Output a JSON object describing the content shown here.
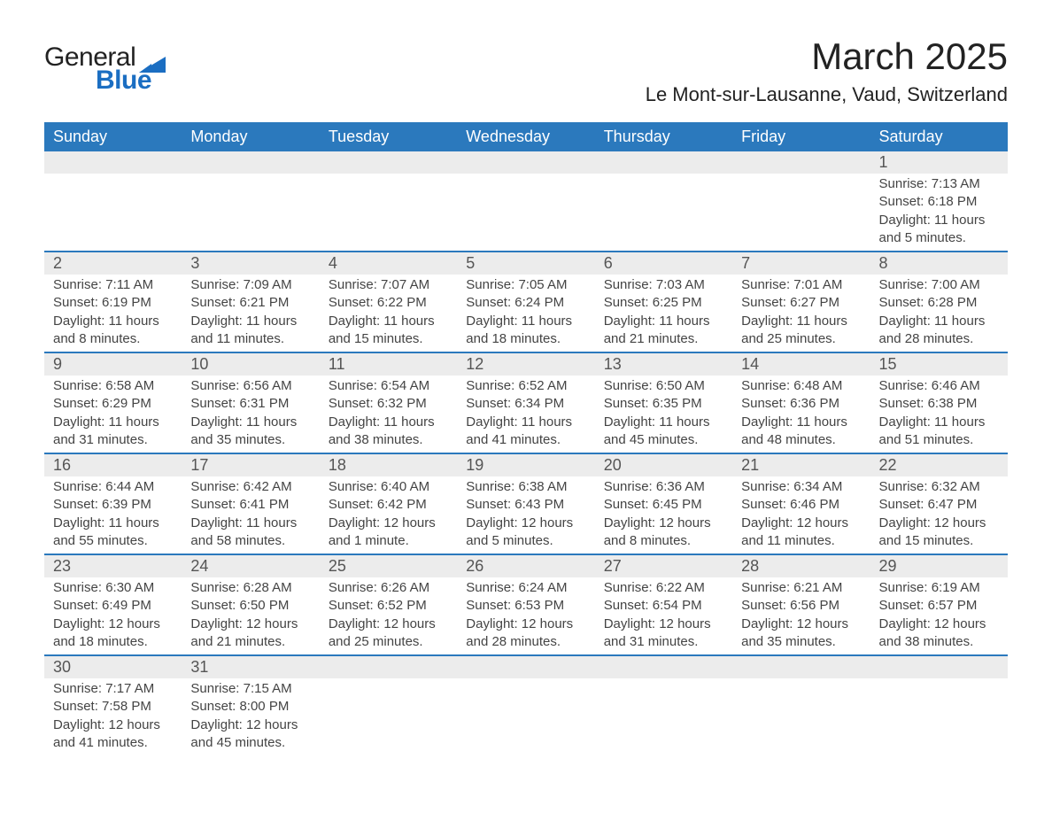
{
  "brand": {
    "text1": "General",
    "text2": "Blue"
  },
  "title": "March 2025",
  "location": "Le Mont-sur-Lausanne, Vaud, Switzerland",
  "colors": {
    "header_bg": "#2b79bd",
    "header_text": "#ffffff",
    "daynum_bg": "#ececec",
    "row_border": "#2b79bd",
    "body_text": "#444444",
    "brand_blue": "#1b6ec2"
  },
  "typography": {
    "title_fontsize": 42,
    "location_fontsize": 22,
    "header_fontsize": 18,
    "daynum_fontsize": 18,
    "detail_fontsize": 15
  },
  "weekdays": [
    "Sunday",
    "Monday",
    "Tuesday",
    "Wednesday",
    "Thursday",
    "Friday",
    "Saturday"
  ],
  "weeks": [
    {
      "nums": [
        "",
        "",
        "",
        "",
        "",
        "",
        "1"
      ],
      "details": [
        "",
        "",
        "",
        "",
        "",
        "",
        "Sunrise: 7:13 AM\nSunset: 6:18 PM\nDaylight: 11 hours and 5 minutes."
      ]
    },
    {
      "nums": [
        "2",
        "3",
        "4",
        "5",
        "6",
        "7",
        "8"
      ],
      "details": [
        "Sunrise: 7:11 AM\nSunset: 6:19 PM\nDaylight: 11 hours and 8 minutes.",
        "Sunrise: 7:09 AM\nSunset: 6:21 PM\nDaylight: 11 hours and 11 minutes.",
        "Sunrise: 7:07 AM\nSunset: 6:22 PM\nDaylight: 11 hours and 15 minutes.",
        "Sunrise: 7:05 AM\nSunset: 6:24 PM\nDaylight: 11 hours and 18 minutes.",
        "Sunrise: 7:03 AM\nSunset: 6:25 PM\nDaylight: 11 hours and 21 minutes.",
        "Sunrise: 7:01 AM\nSunset: 6:27 PM\nDaylight: 11 hours and 25 minutes.",
        "Sunrise: 7:00 AM\nSunset: 6:28 PM\nDaylight: 11 hours and 28 minutes."
      ]
    },
    {
      "nums": [
        "9",
        "10",
        "11",
        "12",
        "13",
        "14",
        "15"
      ],
      "details": [
        "Sunrise: 6:58 AM\nSunset: 6:29 PM\nDaylight: 11 hours and 31 minutes.",
        "Sunrise: 6:56 AM\nSunset: 6:31 PM\nDaylight: 11 hours and 35 minutes.",
        "Sunrise: 6:54 AM\nSunset: 6:32 PM\nDaylight: 11 hours and 38 minutes.",
        "Sunrise: 6:52 AM\nSunset: 6:34 PM\nDaylight: 11 hours and 41 minutes.",
        "Sunrise: 6:50 AM\nSunset: 6:35 PM\nDaylight: 11 hours and 45 minutes.",
        "Sunrise: 6:48 AM\nSunset: 6:36 PM\nDaylight: 11 hours and 48 minutes.",
        "Sunrise: 6:46 AM\nSunset: 6:38 PM\nDaylight: 11 hours and 51 minutes."
      ]
    },
    {
      "nums": [
        "16",
        "17",
        "18",
        "19",
        "20",
        "21",
        "22"
      ],
      "details": [
        "Sunrise: 6:44 AM\nSunset: 6:39 PM\nDaylight: 11 hours and 55 minutes.",
        "Sunrise: 6:42 AM\nSunset: 6:41 PM\nDaylight: 11 hours and 58 minutes.",
        "Sunrise: 6:40 AM\nSunset: 6:42 PM\nDaylight: 12 hours and 1 minute.",
        "Sunrise: 6:38 AM\nSunset: 6:43 PM\nDaylight: 12 hours and 5 minutes.",
        "Sunrise: 6:36 AM\nSunset: 6:45 PM\nDaylight: 12 hours and 8 minutes.",
        "Sunrise: 6:34 AM\nSunset: 6:46 PM\nDaylight: 12 hours and 11 minutes.",
        "Sunrise: 6:32 AM\nSunset: 6:47 PM\nDaylight: 12 hours and 15 minutes."
      ]
    },
    {
      "nums": [
        "23",
        "24",
        "25",
        "26",
        "27",
        "28",
        "29"
      ],
      "details": [
        "Sunrise: 6:30 AM\nSunset: 6:49 PM\nDaylight: 12 hours and 18 minutes.",
        "Sunrise: 6:28 AM\nSunset: 6:50 PM\nDaylight: 12 hours and 21 minutes.",
        "Sunrise: 6:26 AM\nSunset: 6:52 PM\nDaylight: 12 hours and 25 minutes.",
        "Sunrise: 6:24 AM\nSunset: 6:53 PM\nDaylight: 12 hours and 28 minutes.",
        "Sunrise: 6:22 AM\nSunset: 6:54 PM\nDaylight: 12 hours and 31 minutes.",
        "Sunrise: 6:21 AM\nSunset: 6:56 PM\nDaylight: 12 hours and 35 minutes.",
        "Sunrise: 6:19 AM\nSunset: 6:57 PM\nDaylight: 12 hours and 38 minutes."
      ]
    },
    {
      "nums": [
        "30",
        "31",
        "",
        "",
        "",
        "",
        ""
      ],
      "details": [
        "Sunrise: 7:17 AM\nSunset: 7:58 PM\nDaylight: 12 hours and 41 minutes.",
        "Sunrise: 7:15 AM\nSunset: 8:00 PM\nDaylight: 12 hours and 45 minutes.",
        "",
        "",
        "",
        "",
        ""
      ]
    }
  ]
}
